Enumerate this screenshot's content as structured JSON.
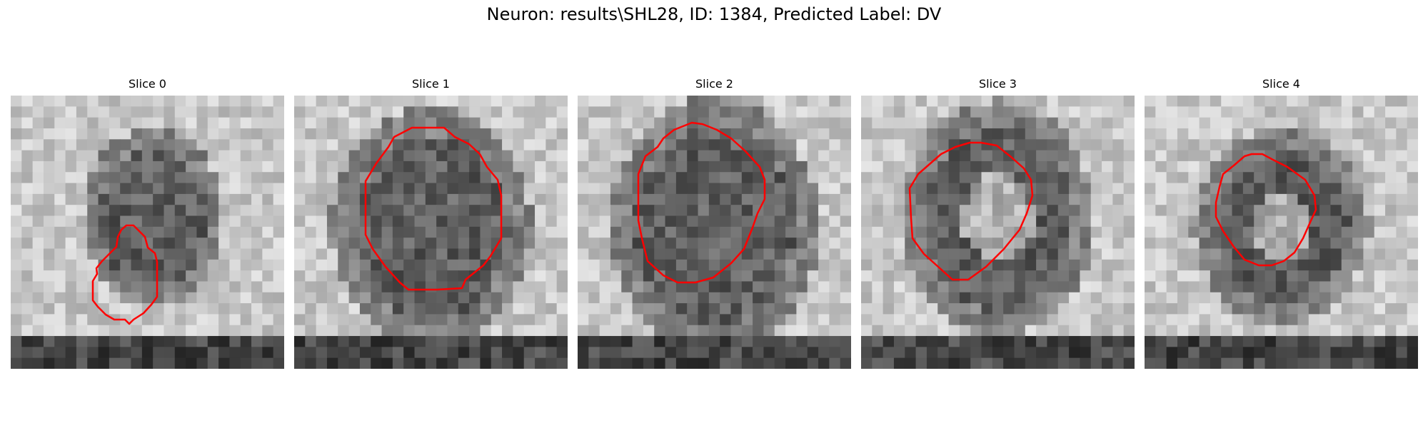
{
  "figure": {
    "title": "Neuron: results\\SHL28, ID: 1384, Predicted Label: DV"
  },
  "panels": [
    {
      "title": "Slice 0",
      "contour_color": "#ff0000"
    },
    {
      "title": "Slice 1",
      "contour_color": "#ff0000"
    },
    {
      "title": "Slice 2",
      "contour_color": "#ff0000"
    },
    {
      "title": "Slice 3",
      "contour_color": "#ff0000"
    },
    {
      "title": "Slice 4",
      "contour_color": "#ff0000"
    }
  ],
  "image_colormap": "grayscale",
  "contour_color": "#ff0000"
}
